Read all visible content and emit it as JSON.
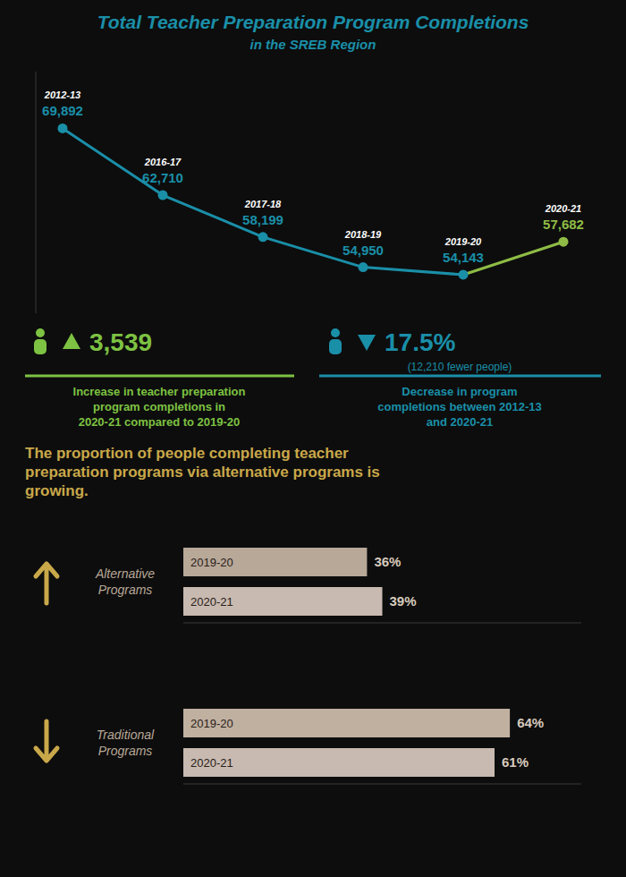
{
  "chart_data": [
    {
      "type": "line",
      "title": "Total Teacher Preparation Program Completions",
      "subtitle": "in the SREB Region",
      "categories": [
        "2012-13",
        "2016-17",
        "2017-18",
        "2018-19",
        "2019-20",
        "2020-21"
      ],
      "values": [
        69892,
        62710,
        58199,
        54950,
        54143,
        57682
      ],
      "value_labels": [
        "69,892",
        "62,710",
        "58,199",
        "54,950",
        "54,143",
        "57,682"
      ],
      "data_labels": true,
      "colors": [
        "#1a8fa8",
        "#1a8fa8",
        "#1a8fa8",
        "#1a8fa8",
        "#1a8fa8",
        "#8fbc45"
      ],
      "marker": "circle",
      "ylim": [
        50000,
        76000
      ],
      "tick_labels": false,
      "grid": false,
      "annotations": [
        {
          "text": "3,539",
          "color": "#7dc242"
        },
        {
          "text": "Increase in teacher preparation\nprogram completions in\n2020-21 compared to 2019-20",
          "color": "#7dc242"
        },
        {
          "text": "17.5%",
          "color": "#1a8fa8"
        },
        {
          "text": "(12,210 fewer people)",
          "color": "#1a8fa8"
        },
        {
          "text": "Decrease in program\ncompletions between 2012-13\nand 2020-21",
          "color": "#1a8fa8"
        }
      ]
    },
    {
      "type": "bar",
      "orientation": "horizontal",
      "title": "Alternative\nPrograms",
      "annotations": [
        "The proportion of people completing teacher\npreparation programs via alternative programs is\ngrowing."
      ],
      "categories": [
        "2019-20",
        "2020-21"
      ],
      "values": [
        36,
        39
      ],
      "value_labels": [
        "36%",
        "39%"
      ],
      "data_labels": true,
      "colors": [
        "#b8a898",
        "#c8bab0"
      ],
      "xlim": [
        0,
        78
      ],
      "tick_labels": false,
      "grid": false
    },
    {
      "type": "bar",
      "orientation": "horizontal",
      "title": "Traditional\nPrograms",
      "categories": [
        "2019-20",
        "2020-21"
      ],
      "values": [
        64,
        61
      ],
      "value_labels": [
        "64%",
        "61%"
      ],
      "data_labels": true,
      "colors": [
        "#c0b0a0",
        "#c8bab0"
      ],
      "xlim": [
        0,
        78
      ],
      "tick_labels": false,
      "grid": false
    }
  ]
}
